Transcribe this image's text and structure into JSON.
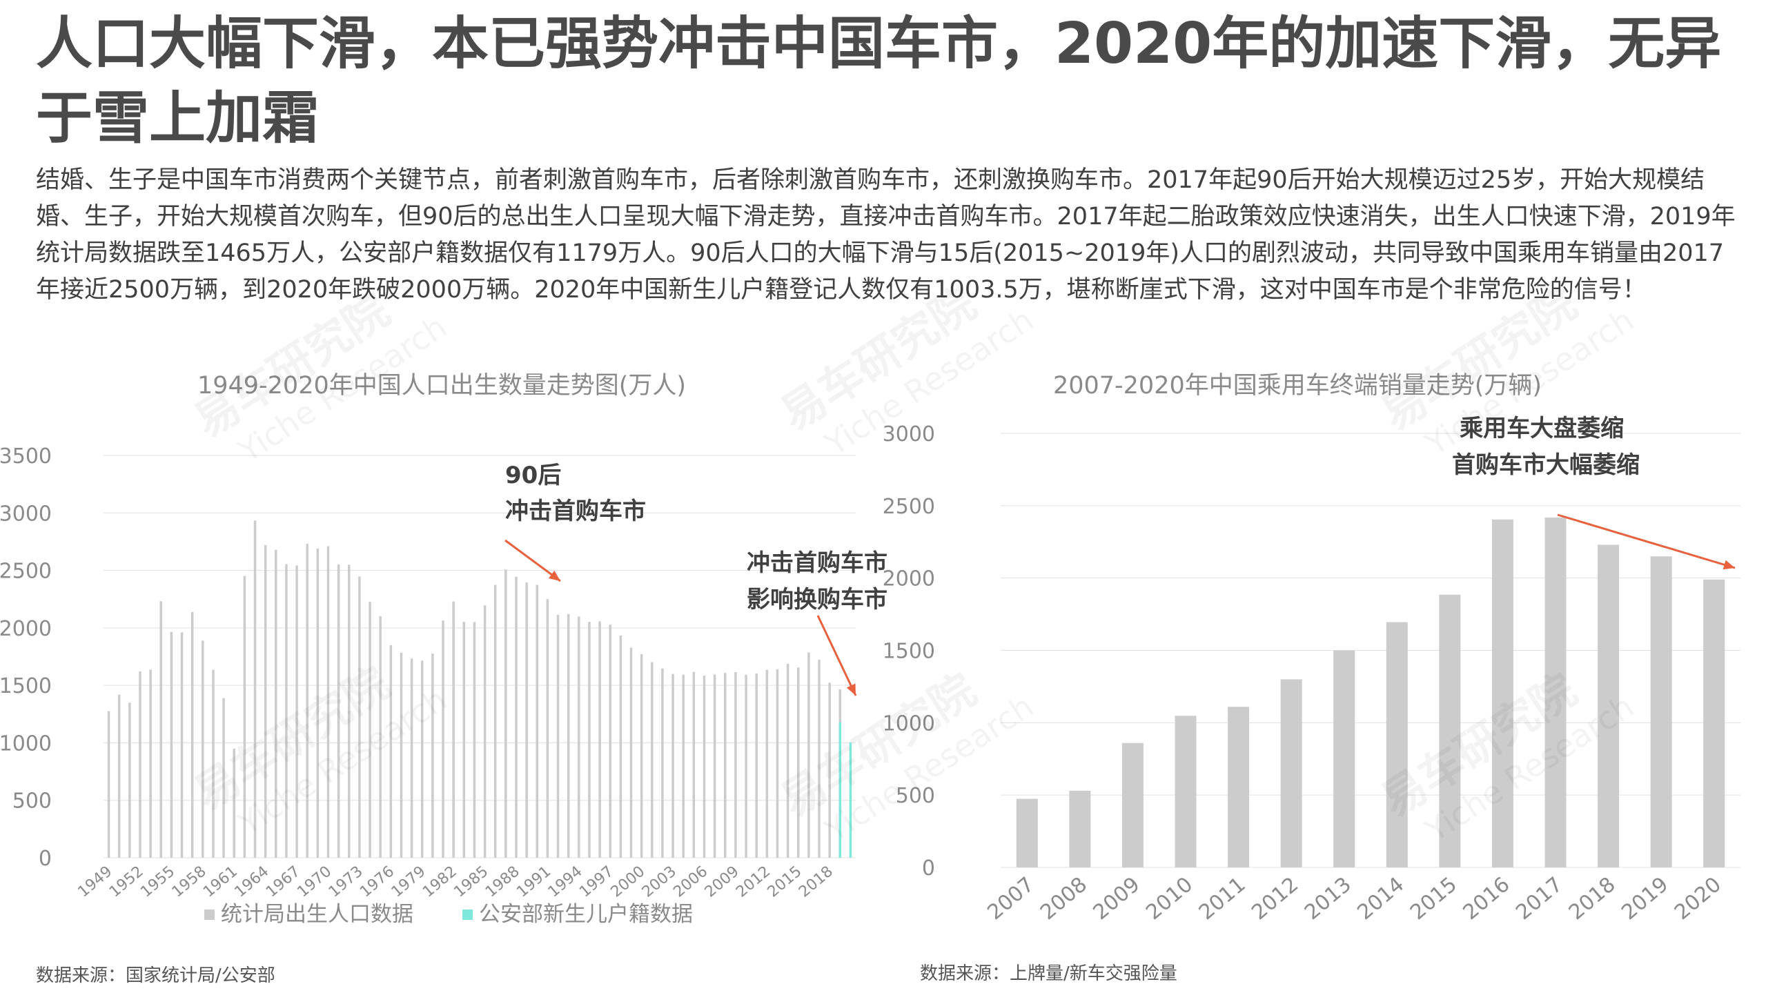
{
  "headline": "人口大幅下滑，本已强势冲击中国车市，2020年的加速下滑，无异于雪上加霜",
  "body": "结婚、生子是中国车市消费两个关键节点，前者刺激首购车市，后者除刺激首购车市，还刺激换购车市。2017年起90后开始大规模迈过25岁，开始大规模结婚、生子，开始大规模首次购车，但90后的总出生人口呈现大幅下滑走势，直接冲击首购车市。2017年起二胎政策效应快速消失，出生人口快速下滑，2019年统计局数据跌至1465万人，公安部户籍数据仅有1179万人。90后人口的大幅下滑与15后(2015~2019年)人口的剧烈波动，共同导致中国乘用车销量由2017年接近2500万辆，到2020年跌破2000万辆。2020年中国新生儿户籍登记人数仅有1003.5万，堪称断崖式下滑，这对中国车市是个非常危险的信号！",
  "watermark": {
    "cn": "易车研究院",
    "en": "Yiche Research"
  },
  "colors": {
    "gray_bar": "#cccccc",
    "teal_bar": "#7fe8dc",
    "arrow": "#e8603c",
    "grid": "#e0e0e0",
    "axis_text": "#8a8a8a"
  },
  "chart_data": [
    {
      "type": "bar",
      "title": "1949-2020年中国人口出生数量走势图(万人)",
      "ylim": [
        0,
        3500
      ],
      "yticks": [
        0,
        500,
        1000,
        1500,
        2000,
        2500,
        3000,
        3500
      ],
      "x": [
        1949,
        1950,
        1951,
        1952,
        1953,
        1954,
        1955,
        1956,
        1957,
        1958,
        1959,
        1960,
        1961,
        1962,
        1963,
        1964,
        1965,
        1966,
        1967,
        1968,
        1969,
        1970,
        1971,
        1972,
        1973,
        1974,
        1975,
        1976,
        1977,
        1978,
        1979,
        1980,
        1981,
        1982,
        1983,
        1984,
        1985,
        1986,
        1987,
        1988,
        1989,
        1990,
        1991,
        1992,
        1993,
        1994,
        1995,
        1996,
        1997,
        1998,
        1999,
        2000,
        2001,
        2002,
        2003,
        2004,
        2005,
        2006,
        2007,
        2008,
        2009,
        2010,
        2011,
        2012,
        2013,
        2014,
        2015,
        2016,
        2017,
        2018,
        2019,
        2020
      ],
      "xtick_labels": [
        "1949",
        "1952",
        "1955",
        "1958",
        "1961",
        "1964",
        "1967",
        "1970",
        "1973",
        "1976",
        "1979",
        "1982",
        "1985",
        "1988",
        "1991",
        "1994",
        "1997",
        "2000",
        "2003",
        "2006",
        "2009",
        "2012",
        "2015",
        "2018"
      ],
      "series": [
        {
          "name": "统计局出生人口数据",
          "color": "#cccccc",
          "values": [
            1275,
            1419,
            1349,
            1622,
            1637,
            2232,
            1965,
            1961,
            2138,
            1889,
            1635,
            1389,
            949,
            2451,
            2934,
            2721,
            2679,
            2554,
            2543,
            2731,
            2690,
            2710,
            2551,
            2550,
            2447,
            2226,
            2102,
            1849,
            1783,
            1733,
            1715,
            1776,
            2064,
            2230,
            2052,
            2050,
            2196,
            2374,
            2508,
            2445,
            2396,
            2374,
            2250,
            2113,
            2120,
            2098,
            2052,
            2057,
            2028,
            1934,
            1827,
            1771,
            1702,
            1647,
            1599,
            1593,
            1617,
            1584,
            1594,
            1608,
            1615,
            1592,
            1604,
            1635,
            1640,
            1687,
            1655,
            1786,
            1723,
            1523,
            1465,
            null
          ]
        },
        {
          "name": "公安部新生儿户籍数据",
          "color": "#7fe8dc",
          "values": [
            null,
            null,
            null,
            null,
            null,
            null,
            null,
            null,
            null,
            null,
            null,
            null,
            null,
            null,
            null,
            null,
            null,
            null,
            null,
            null,
            null,
            null,
            null,
            null,
            null,
            null,
            null,
            null,
            null,
            null,
            null,
            null,
            null,
            null,
            null,
            null,
            null,
            null,
            null,
            null,
            null,
            null,
            null,
            null,
            null,
            null,
            null,
            null,
            null,
            null,
            null,
            null,
            null,
            null,
            null,
            null,
            null,
            null,
            null,
            null,
            null,
            null,
            null,
            null,
            null,
            null,
            null,
            null,
            null,
            null,
            1179,
            1003.5
          ]
        }
      ],
      "annotations": [
        {
          "line1": "90后",
          "line2": "冲击首购车市"
        },
        {
          "line1": "冲击首购车市",
          "line2": "影响换购车市"
        }
      ],
      "source": "数据来源：国家统计局/公安部"
    },
    {
      "type": "bar",
      "title": "2007-2020年中国乘用车终端销量走势(万辆)",
      "ylim": [
        0,
        3000
      ],
      "yticks": [
        0,
        500,
        1000,
        1500,
        2000,
        2500,
        3000
      ],
      "categories": [
        "2007",
        "2008",
        "2009",
        "2010",
        "2011",
        "2012",
        "2013",
        "2014",
        "2015",
        "2016",
        "2017",
        "2018",
        "2019",
        "2020"
      ],
      "values": [
        474,
        530,
        860,
        1048,
        1110,
        1300,
        1500,
        1695,
        1885,
        2405,
        2418,
        2230,
        2150,
        1990
      ],
      "annotations": [
        {
          "line1": "乘用车大盘萎缩",
          "line2": "首购车市大幅萎缩"
        }
      ],
      "source": "数据来源：上牌量/新车交强险量"
    }
  ]
}
